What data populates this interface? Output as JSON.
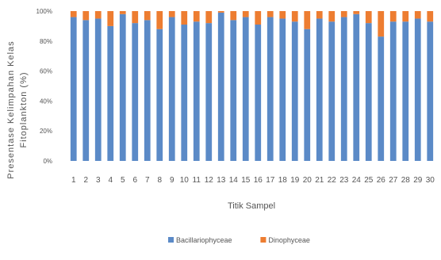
{
  "chart_data": {
    "type": "bar",
    "stacked": true,
    "percent": true,
    "title": "",
    "xlabel": "Titik Sampel",
    "ylabel_lines": [
      "Presentase Kelimpahan Kelas",
      "Fitoplankton (%)"
    ],
    "ylim": [
      0,
      100
    ],
    "yticks": [
      0,
      20,
      40,
      60,
      80,
      100
    ],
    "ytick_labels": [
      "0%",
      "20%",
      "40%",
      "60%",
      "80%",
      "100%"
    ],
    "grid": false,
    "legend_position": "bottom",
    "categories": [
      "1",
      "2",
      "3",
      "4",
      "5",
      "6",
      "7",
      "8",
      "9",
      "10",
      "11",
      "12",
      "13",
      "14",
      "15",
      "16",
      "17",
      "18",
      "19",
      "20",
      "21",
      "22",
      "23",
      "24",
      "25",
      "26",
      "27",
      "28",
      "29",
      "30"
    ],
    "series": [
      {
        "name": "Bacillariophyceae",
        "color": "#5b8ac7",
        "values": [
          96,
          94,
          95,
          90,
          98,
          92,
          94,
          88,
          96,
          91,
          93,
          92,
          99,
          94,
          96,
          91,
          96,
          95,
          93,
          88,
          95,
          93,
          96,
          98,
          92,
          83,
          93,
          93,
          95,
          93
        ]
      },
      {
        "name": "Dinophyceae",
        "color": "#ed7d31",
        "values": [
          4,
          6,
          5,
          10,
          2,
          8,
          6,
          12,
          4,
          9,
          7,
          8,
          1,
          6,
          4,
          9,
          4,
          5,
          7,
          12,
          5,
          7,
          4,
          2,
          8,
          17,
          7,
          7,
          5,
          7
        ]
      }
    ]
  }
}
